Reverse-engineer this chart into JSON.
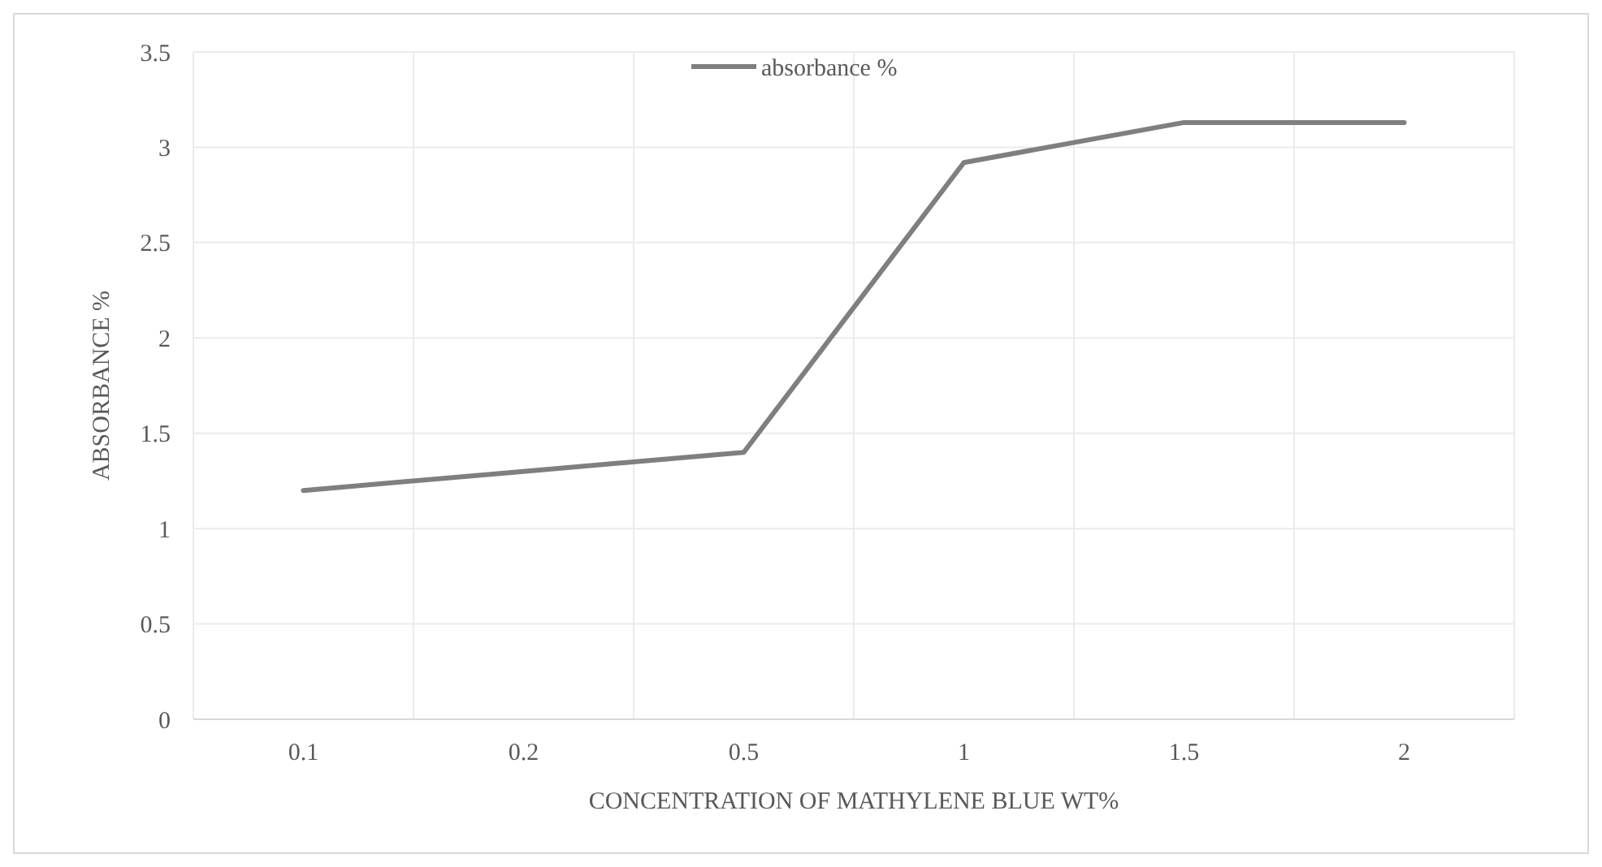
{
  "chart_data": {
    "type": "line",
    "xlabel": "CONCENTRATION OF MATHYLENE BLUE WT%",
    "ylabel": "ABSORBANCE %",
    "categories": [
      "0.1",
      "0.2",
      "0.5",
      "1",
      "1.5",
      "2"
    ],
    "series": [
      {
        "name": "absorbance %",
        "color": "#7f7f7f",
        "values": [
          1.2,
          1.3,
          1.4,
          2.92,
          3.13,
          3.13
        ]
      }
    ],
    "ylim": [
      0,
      3.5
    ],
    "yticks": [
      0,
      0.5,
      1,
      1.5,
      2,
      2.5,
      3,
      3.5
    ],
    "grid": true,
    "legend": "top",
    "marker": "none",
    "line_style": "solid"
  }
}
